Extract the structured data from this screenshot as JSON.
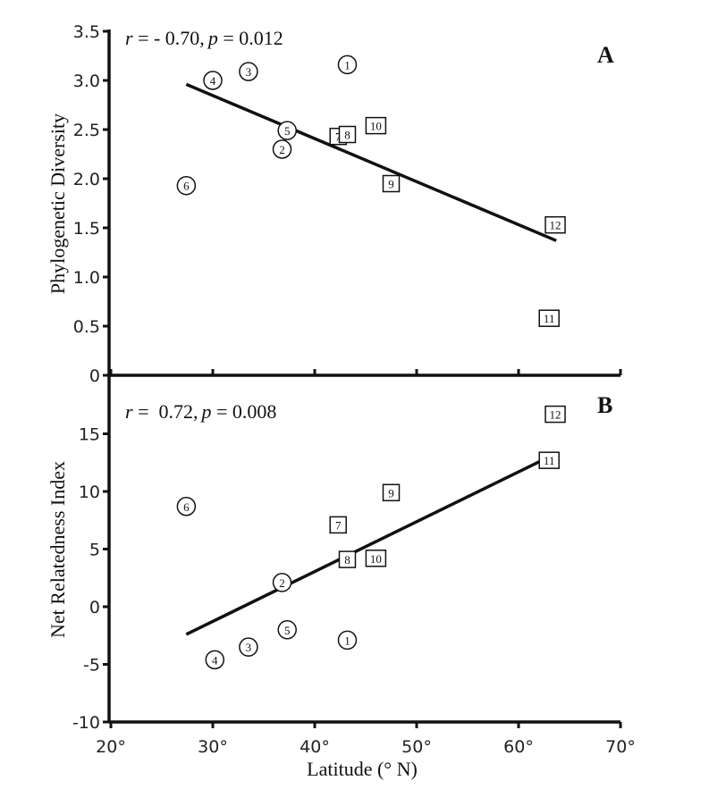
{
  "chart_data": [
    {
      "type": "scatter",
      "panel": "A",
      "title": "",
      "xlabel": "Latitude (° N)",
      "ylabel": "Phylogenetic Diversity",
      "xlim": [
        20,
        70
      ],
      "ylim": [
        0,
        3.5
      ],
      "xticks": [
        "20°",
        "30°",
        "40°",
        "50°",
        "60°",
        "70°"
      ],
      "yticks": [
        {
          "v": 0,
          "label": "0"
        },
        {
          "v": 0.5,
          "label": "0.5"
        },
        {
          "v": 1,
          "label": "1.0"
        },
        {
          "v": 1.5,
          "label": "1.5"
        },
        {
          "v": 2,
          "label": "2.0"
        },
        {
          "v": 2.5,
          "label": "2.5"
        },
        {
          "v": 3,
          "label": "3.0"
        },
        {
          "v": 3.5,
          "label": "3.5"
        }
      ],
      "annotation": {
        "r_label": "r",
        "r_eq": " = ",
        "r_value": "- 0.70,",
        "p_label": "p",
        "p_eq": " = ",
        "p_value": "0.012"
      },
      "points": [
        {
          "id": "1",
          "shape": "circle",
          "x": 43.2,
          "y": 3.16
        },
        {
          "id": "2",
          "shape": "circle",
          "x": 36.8,
          "y": 2.3
        },
        {
          "id": "3",
          "shape": "circle",
          "x": 33.5,
          "y": 3.09
        },
        {
          "id": "4",
          "shape": "circle",
          "x": 30.0,
          "y": 3.0
        },
        {
          "id": "5",
          "shape": "circle",
          "x": 37.3,
          "y": 2.49
        },
        {
          "id": "6",
          "shape": "circle",
          "x": 27.4,
          "y": 1.93
        },
        {
          "id": "7",
          "shape": "square",
          "x": 42.3,
          "y": 2.43
        },
        {
          "id": "8",
          "shape": "square",
          "x": 43.2,
          "y": 2.45
        },
        {
          "id": "9",
          "shape": "square",
          "x": 47.5,
          "y": 1.95
        },
        {
          "id": "10",
          "shape": "square",
          "x": 46.0,
          "y": 2.54
        },
        {
          "id": "11",
          "shape": "square",
          "x": 63.0,
          "y": 0.58
        },
        {
          "id": "12",
          "shape": "square",
          "x": 63.6,
          "y": 1.53
        }
      ],
      "fit_line": {
        "x": [
          27.4,
          63.7
        ],
        "y": [
          2.96,
          1.37
        ]
      }
    },
    {
      "type": "scatter",
      "panel": "B",
      "title": "",
      "xlabel": "Latitude (° N)",
      "ylabel": "Net Relatedness Index",
      "xlim": [
        20,
        70
      ],
      "ylim": [
        -10,
        20
      ],
      "xticks": [
        "20°",
        "30°",
        "40°",
        "50°",
        "60°",
        "70°"
      ],
      "yticks": [
        {
          "v": -10,
          "label": "-10"
        },
        {
          "v": -5,
          "label": "-5"
        },
        {
          "v": 0,
          "label": "0"
        },
        {
          "v": 5,
          "label": "5"
        },
        {
          "v": 10,
          "label": "10"
        },
        {
          "v": 15,
          "label": "15"
        }
      ],
      "annotation": {
        "r_label": "r",
        "r_eq": " =  ",
        "r_value": "0.72,",
        "p_label": "p",
        "p_eq": " = ",
        "p_value": "0.008"
      },
      "points": [
        {
          "id": "1",
          "shape": "circle",
          "x": 43.2,
          "y": -2.9
        },
        {
          "id": "2",
          "shape": "circle",
          "x": 36.8,
          "y": 2.1
        },
        {
          "id": "3",
          "shape": "circle",
          "x": 33.5,
          "y": -3.5
        },
        {
          "id": "4",
          "shape": "circle",
          "x": 30.2,
          "y": -4.6
        },
        {
          "id": "5",
          "shape": "circle",
          "x": 37.3,
          "y": -2.0
        },
        {
          "id": "6",
          "shape": "circle",
          "x": 27.4,
          "y": 8.7
        },
        {
          "id": "7",
          "shape": "square",
          "x": 42.3,
          "y": 7.1
        },
        {
          "id": "8",
          "shape": "square",
          "x": 43.2,
          "y": 4.1
        },
        {
          "id": "9",
          "shape": "square",
          "x": 47.5,
          "y": 9.9
        },
        {
          "id": "10",
          "shape": "square",
          "x": 46.0,
          "y": 4.2
        },
        {
          "id": "11",
          "shape": "square",
          "x": 63.0,
          "y": 12.7
        },
        {
          "id": "12",
          "shape": "square",
          "x": 63.6,
          "y": 16.7
        }
      ],
      "fit_line": {
        "x": [
          27.4,
          63.7
        ],
        "y": [
          -2.4,
          13.3
        ]
      }
    }
  ]
}
